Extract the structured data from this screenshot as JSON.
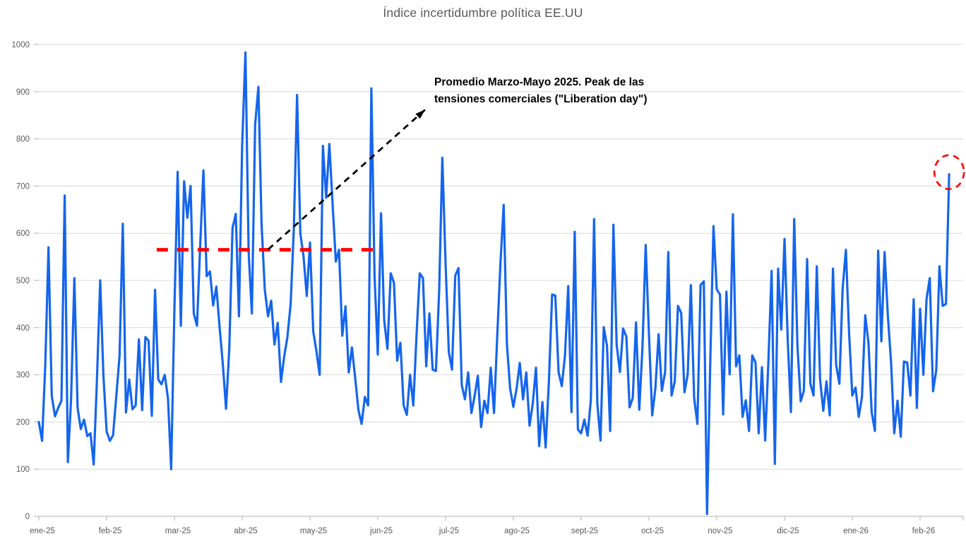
{
  "chart_data": {
    "type": "line",
    "title": "Índice incertidumbre política EE.UU",
    "xlabel": "",
    "ylabel": "",
    "ylim": [
      0,
      1000
    ],
    "y_ticks": [
      0,
      100,
      200,
      300,
      400,
      500,
      600,
      700,
      800,
      900,
      1000
    ],
    "x_tick_labels": [
      "ene-25",
      "feb-25",
      "mar-25",
      "abr-25",
      "may-25",
      "jun-25",
      "jul-25",
      "ago-25",
      "sept-25",
      "oct-25",
      "nov-25",
      "dic-25",
      "ene-26",
      "feb-26"
    ],
    "grid": "horizontal",
    "legend": "none",
    "points_per_month": 21,
    "series": [
      {
        "name": "indice-incertidumbre",
        "color": "#1565EC",
        "values": [
          200,
          160,
          320,
          570,
          255,
          212,
          230,
          245,
          680,
          115,
          250,
          505,
          230,
          185,
          205,
          170,
          176,
          110,
          290,
          500,
          300,
          180,
          160,
          172,
          255,
          340,
          620,
          220,
          290,
          227,
          235,
          375,
          225,
          380,
          372,
          213,
          480,
          290,
          280,
          300,
          250,
          100,
          440,
          730,
          404,
          710,
          633,
          700,
          430,
          404,
          578,
          733,
          509,
          519,
          447,
          487,
          400,
          322,
          228,
          355,
          611,
          641,
          424,
          790,
          983,
          560,
          430,
          830,
          910,
          620,
          480,
          424,
          457,
          364,
          410,
          285,
          338,
          380,
          450,
          609,
          893,
          600,
          550,
          467,
          580,
          392,
          350,
          300,
          785,
          675,
          789,
          662,
          540,
          565,
          383,
          445,
          305,
          358,
          293,
          225,
          196,
          253,
          235,
          907,
          510,
          343,
          642,
          415,
          355,
          515,
          495,
          330,
          368,
          235,
          215,
          300,
          235,
          385,
          515,
          505,
          318,
          430,
          311,
          308,
          477,
          760,
          536,
          348,
          311,
          510,
          526,
          278,
          248,
          305,
          219,
          255,
          298,
          189,
          245,
          219,
          315,
          219,
          380,
          536,
          660,
          364,
          271,
          232,
          271,
          325,
          248,
          305,
          192,
          238,
          315,
          149,
          242,
          146,
          285,
          470,
          468,
          306,
          276,
          341,
          488,
          221,
          603,
          184,
          176,
          205,
          171,
          246,
          630,
          239,
          161,
          401,
          361,
          181,
          618,
          363,
          306,
          398,
          381,
          231,
          251,
          411,
          226,
          361,
          575,
          386,
          214,
          271,
          386,
          266,
          306,
          560,
          256,
          286,
          446,
          431,
          263,
          301,
          490,
          251,
          196,
          490,
          498,
          5,
          330,
          615,
          481,
          470,
          216,
          476,
          301,
          640,
          318,
          341,
          211,
          246,
          181,
          341,
          326,
          176,
          316,
          161,
          326,
          520,
          111,
          525,
          396,
          588,
          371,
          221,
          630,
          361,
          244,
          266,
          545,
          281,
          256,
          530,
          291,
          224,
          286,
          214,
          525,
          321,
          281,
          483,
          565,
          390,
          256,
          273,
          211,
          253,
          426,
          368,
          221,
          181,
          563,
          371,
          560,
          426,
          326,
          176,
          245,
          169,
          328,
          326,
          256,
          460,
          230,
          440,
          300,
          460,
          505,
          265,
          310,
          530,
          446,
          450,
          725
        ]
      }
    ],
    "average_line": {
      "value": 565,
      "start_index": 36.5,
      "end_index": 103.5,
      "color": "#FF0000"
    },
    "annotation": {
      "line1": "Promedio Marzo-Mayo 2025. Peak de las",
      "line2": "tensiones comerciales (\"Liberation day\")",
      "arrow": {
        "from_index": 71.1,
        "from_value": 566,
        "to_index": 119.7,
        "to_value": 862,
        "color": "#000000"
      }
    },
    "highlight_circle": {
      "index": 282,
      "value": 725,
      "color": "#FF0000"
    },
    "colors": {
      "gridline": "#D9D9D9",
      "axis": "#BFBFBF",
      "text": "#595959"
    }
  }
}
